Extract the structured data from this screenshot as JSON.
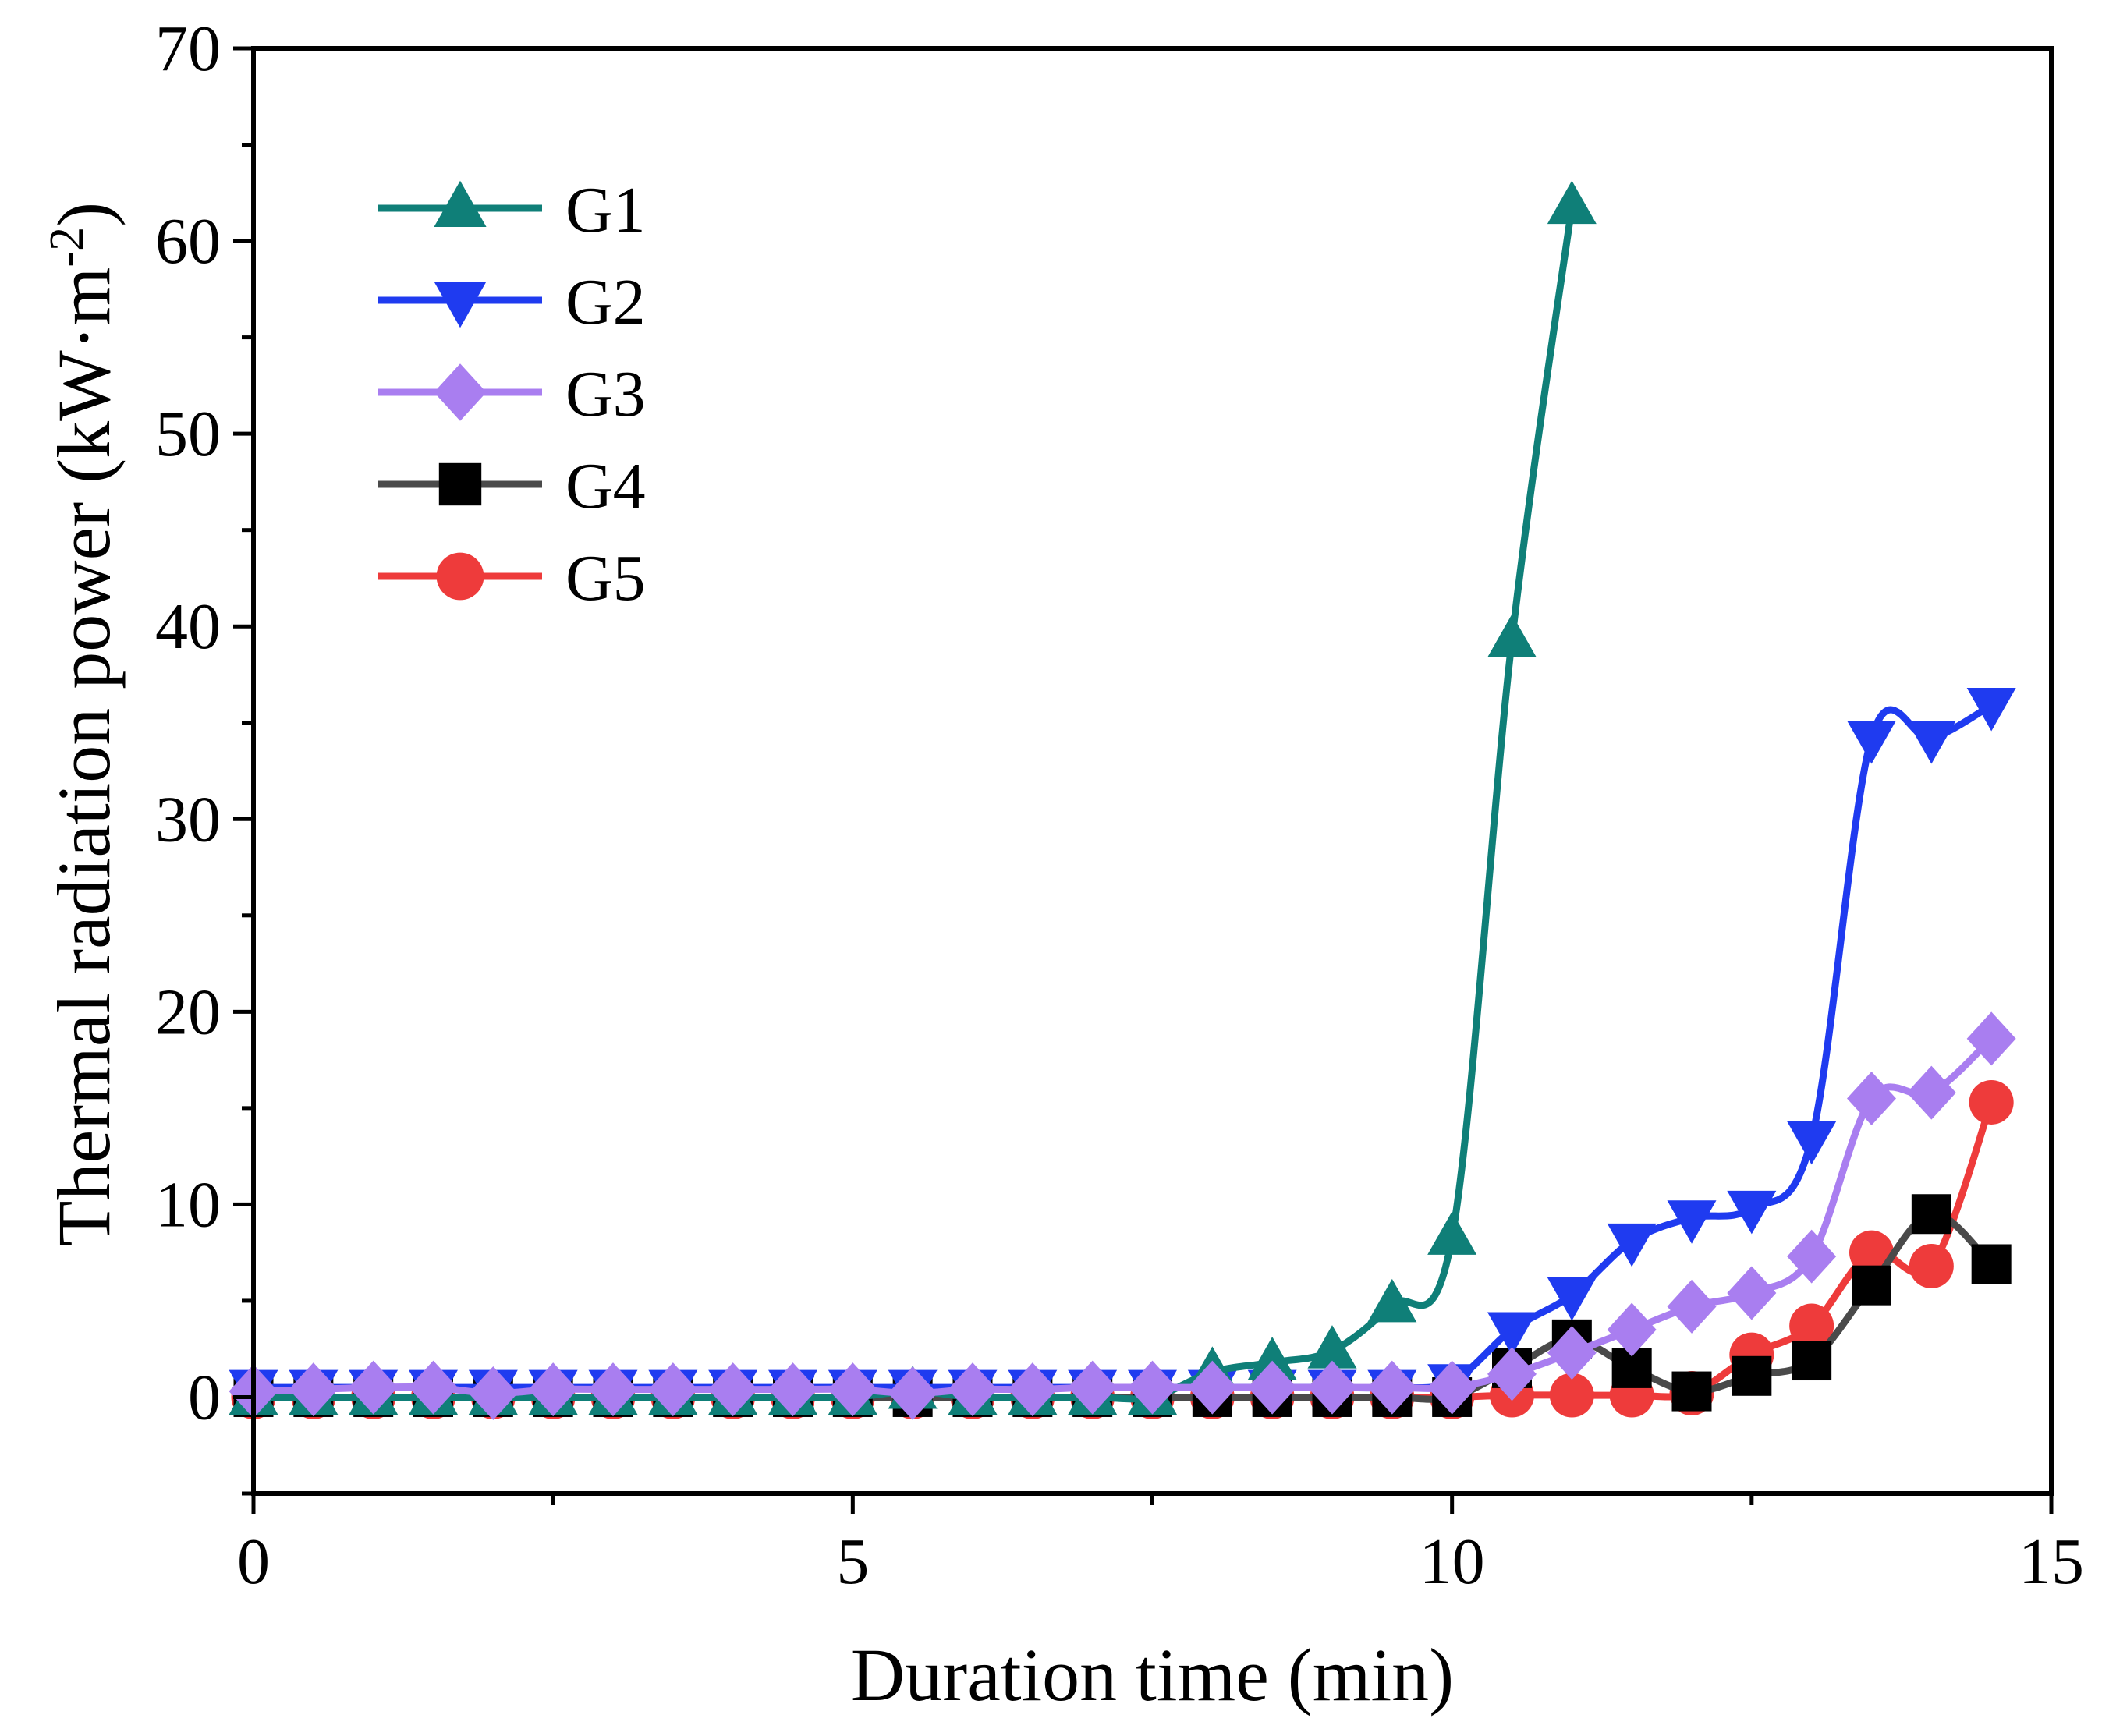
{
  "chart_data": {
    "type": "line",
    "xlabel": "Duration time (min)",
    "ylabel": "Thermal radiation power (kW·m",
    "ylabel_sup": "-2",
    "ylabel_close": ")",
    "xlim": [
      0,
      15
    ],
    "ylim": [
      -5,
      70
    ],
    "xticks": [
      0,
      5,
      10,
      15
    ],
    "xticks_minor": [
      2.5,
      7.5,
      12.5
    ],
    "yticks": [
      0,
      10,
      20,
      30,
      40,
      50,
      60,
      70
    ],
    "yticks_minor": [
      -5,
      5,
      15,
      25,
      35,
      45,
      55,
      65
    ],
    "grid": false,
    "legend_position": "top-left",
    "series": [
      {
        "name": "G1",
        "color": "#0f7f78",
        "marker": "triangle-up",
        "x": [
          0,
          0.5,
          1,
          1.5,
          2,
          2.5,
          3,
          3.5,
          4,
          4.5,
          5,
          5.5,
          6,
          6.5,
          7,
          7.5,
          8,
          8.5,
          9,
          9.5,
          10,
          10.5,
          11
        ],
        "y": [
          0,
          0,
          0,
          0,
          0,
          0,
          0,
          0,
          0,
          0,
          0,
          0.3,
          0,
          0,
          0,
          0,
          1.3,
          1.8,
          2.4,
          4.8,
          8.3,
          39.3,
          61.8
        ]
      },
      {
        "name": "G2",
        "color": "#1f3bf0",
        "marker": "triangle-down",
        "x": [
          0,
          0.5,
          1,
          1.5,
          2,
          2.5,
          3,
          3.5,
          4,
          4.5,
          5,
          5.5,
          6,
          6.5,
          7,
          7.5,
          8,
          8.5,
          9,
          9.5,
          10,
          10.5,
          11,
          11.5,
          12,
          12.5,
          13,
          13.5,
          14,
          14.5
        ],
        "y": [
          0.5,
          0.5,
          0.5,
          0.5,
          0.5,
          0.5,
          0.5,
          0.5,
          0.5,
          0.5,
          0.5,
          0.5,
          0.5,
          0.5,
          0.5,
          0.5,
          0.5,
          0.5,
          0.5,
          0.5,
          0.8,
          3.5,
          5.3,
          8.1,
          9.3,
          9.8,
          13.4,
          34.2,
          34.2,
          35.9
        ]
      },
      {
        "name": "G3",
        "color": "#a97ef0",
        "marker": "diamond",
        "x": [
          0,
          0.5,
          1,
          1.5,
          2,
          2.5,
          3,
          3.5,
          4,
          4.5,
          5,
          5.5,
          6,
          6.5,
          7,
          7.5,
          8,
          8.5,
          9,
          9.5,
          10,
          10.5,
          11,
          11.5,
          12,
          12.5,
          13,
          13.5,
          14,
          14.5
        ],
        "y": [
          0.3,
          0.4,
          0.5,
          0.5,
          0.2,
          0.4,
          0.4,
          0.4,
          0.4,
          0.4,
          0.4,
          0.2,
          0.4,
          0.4,
          0.5,
          0.5,
          0.5,
          0.5,
          0.5,
          0.5,
          0.5,
          1.2,
          2.3,
          3.5,
          4.7,
          5.4,
          7.3,
          15.5,
          15.8,
          18.6
        ]
      },
      {
        "name": "G4",
        "color": "#4a4a4a",
        "marker": "square",
        "x": [
          0,
          0.5,
          1,
          1.5,
          2,
          2.5,
          3,
          3.5,
          4,
          4.5,
          5,
          5.5,
          6,
          6.5,
          7,
          7.5,
          8,
          8.5,
          9,
          9.5,
          10,
          10.5,
          11,
          11.5,
          12,
          12.5,
          13,
          13.5,
          14,
          14.5
        ],
        "y": [
          0,
          0,
          0,
          0,
          0,
          0,
          0,
          0,
          0,
          0,
          0,
          0,
          0,
          0,
          0,
          0,
          0,
          0,
          0,
          0,
          0,
          1.5,
          3.0,
          1.5,
          0.3,
          1.1,
          1.9,
          5.8,
          9.5,
          6.9
        ]
      },
      {
        "name": "G5",
        "color": "#ee3b3b",
        "marker": "circle",
        "x": [
          0,
          0.5,
          1,
          1.5,
          2,
          2.5,
          3,
          3.5,
          4,
          4.5,
          5,
          5.5,
          6,
          6.5,
          7,
          7.5,
          8,
          8.5,
          9,
          9.5,
          10,
          10.5,
          11,
          11.5,
          12,
          12.5,
          13,
          13.5,
          14,
          14.5
        ],
        "y": [
          0,
          0,
          0,
          0,
          0,
          0,
          0,
          0,
          0,
          0,
          0,
          0,
          0,
          0,
          0,
          0,
          0,
          0,
          0,
          0,
          0,
          0.1,
          0.1,
          0.1,
          0.2,
          2.2,
          3.7,
          7.5,
          6.8,
          15.3
        ]
      }
    ]
  }
}
